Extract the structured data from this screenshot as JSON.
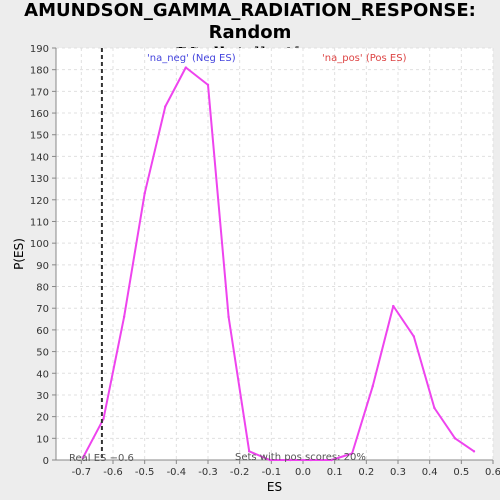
{
  "chart_data": {
    "type": "line",
    "title": "AMUNDSON_GAMMA_RADIATION_RESPONSE: Random\nES distribution",
    "xlabel": "ES",
    "ylabel": "P(ES)",
    "xlim": [
      -0.78,
      0.6
    ],
    "ylim": [
      0,
      190
    ],
    "xticks": [
      "-0.7",
      "-0.6",
      "-0.5",
      "-0.4",
      "-0.3",
      "-0.2",
      "-0.1",
      "0.0",
      "0.1",
      "0.2",
      "0.3",
      "0.4",
      "0.5",
      "0.6"
    ],
    "yticks": [
      "0",
      "10",
      "20",
      "30",
      "40",
      "50",
      "60",
      "70",
      "80",
      "90",
      "100",
      "110",
      "120",
      "130",
      "140",
      "150",
      "160",
      "170",
      "180",
      "190"
    ],
    "grid": true,
    "series": [
      {
        "color": "#ee44ee",
        "x": [
          -0.695,
          -0.63,
          -0.565,
          -0.5,
          -0.435,
          -0.37,
          -0.3,
          -0.235,
          -0.17,
          -0.105,
          -0.04,
          0.025,
          0.09,
          0.155,
          0.22,
          0.285,
          0.35,
          0.415,
          0.48,
          0.54
        ],
        "y": [
          1,
          19,
          66,
          123,
          163,
          181,
          173,
          66,
          4,
          0,
          0,
          0,
          0,
          3,
          34,
          71,
          57,
          24,
          10,
          4
        ]
      }
    ],
    "annotations": {
      "neg_label": "'na_neg' (Neg ES)",
      "neg_color": "#4444dd",
      "pos_label": "'na_pos' (Pos ES)",
      "pos_color": "#dd4444",
      "real_es_x": -0.635,
      "real_es_label": "Real ES −0.6",
      "sets_label": "Sets with pos scores: 20%"
    }
  }
}
